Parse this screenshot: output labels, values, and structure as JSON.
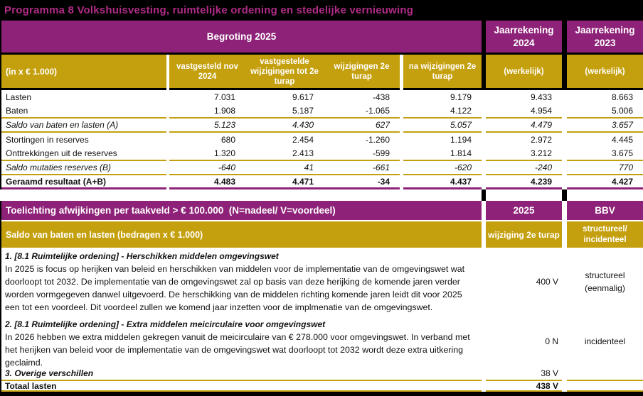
{
  "page": {
    "title": "Programma 8 Volkshuisvesting, ruimtelijke ordening en stedelijke vernieuwing"
  },
  "colors": {
    "header_purple": "#8E2278",
    "header_gold": "#C5A00E",
    "title_magenta": "#B02C86",
    "bar_black": "#000000"
  },
  "budget_table": {
    "section_headers": {
      "begroting": "Begroting 2025",
      "jaarrekening_2024_line1": "Jaarrekening",
      "jaarrekening_2024_line2": "2024",
      "jaarrekening_2023_line1": "Jaarrekening",
      "jaarrekening_2023_line2": "2023"
    },
    "column_headers": {
      "unit": "(in x € 1.000)",
      "col1": "vastgesteld nov 2024",
      "col2": "vastgestelde wijzigingen tot 2e turap",
      "col3": "wijzigingen 2e turap",
      "col4": "na wijzigingen 2e turap",
      "col5": "(werkelijk)",
      "col6": "(werkelijk)"
    },
    "rows": [
      {
        "label": "Lasten",
        "values": [
          "7.031",
          "9.617",
          "-438",
          "9.179",
          "9.433",
          "8.663"
        ]
      },
      {
        "label": "Baten",
        "values": [
          "1.908",
          "5.187",
          "-1.065",
          "4.122",
          "4.954",
          "5.006"
        ]
      },
      {
        "label": "Saldo van baten en lasten (A)",
        "values": [
          "5.123",
          "4.430",
          "627",
          "5.057",
          "4.479",
          "3.657"
        ]
      },
      {
        "label": "Stortingen in reserves",
        "values": [
          "680",
          "2.454",
          "-1.260",
          "1.194",
          "2.972",
          "4.445"
        ]
      },
      {
        "label": "Onttrekkingen uit de reserves",
        "values": [
          "1.320",
          "2.413",
          "-599",
          "1.814",
          "3.212",
          "3.675"
        ]
      },
      {
        "label": "Saldo mutaties reserves (B)",
        "values": [
          "-640",
          "41",
          "-661",
          "-620",
          "-240",
          "770"
        ]
      },
      {
        "label": "Geraamd resultaat (A+B)",
        "values": [
          "4.483",
          "4.471",
          "-34",
          "4.437",
          "4.239",
          "4.427"
        ]
      }
    ]
  },
  "toelichting_table": {
    "header": {
      "title": "Toelichting afwijkingen per taakveld > € 100.000  (N=nadeel/ V=voordeel)",
      "year": "2025",
      "bbv": "BBV"
    },
    "subheader": {
      "left": "Saldo van baten en lasten (bedragen x € 1.000)",
      "mid": "wijziging 2e turap",
      "right_line1": "structureel/",
      "right_line2": "incidenteel"
    },
    "items": [
      {
        "title": "1. [8.1 Ruimtelijke ordening] - Herschikken middelen omgevingswet",
        "body": "In 2025 is focus op herijken van beleid en herschikken van middelen voor de implementatie van de omgevingswet wat doorloopt tot 2032. De implementatie van de omgevingswet zal op basis van deze herijking de komende jaren verder worden vormgegeven danwel uitgevoerd. De herschikking van de middelen richting komende jaren leidt dit voor 2025 een tot een voordeel. Dit voordeel  zullen we komend jaar inzetten voor de implmenatie van de omgevingswet.",
        "amount": "400 V",
        "bbv_line1": "structureel",
        "bbv_line2": "(eenmalig)"
      },
      {
        "title": "2. [8.1 Ruimtelijke ordening] - Extra middelen meicirculaire voor omgevingswet",
        "body": "In 2026 hebben we extra middelen gekregen vanuit de meicirculaire van € 278.000 voor omgevingswet. In verband met het herijken van beleid voor de implementatie van de omgevingswet wat doorloopt tot 2032 wordt deze extra uitkering geclaimd.",
        "amount": "0 N",
        "bbv_line1": "incidenteel",
        "bbv_line2": ""
      }
    ],
    "overige": {
      "label": "3. Overige verschillen",
      "amount": "38 V"
    },
    "totaal": {
      "label": "Totaal lasten",
      "amount": "438 V"
    }
  }
}
